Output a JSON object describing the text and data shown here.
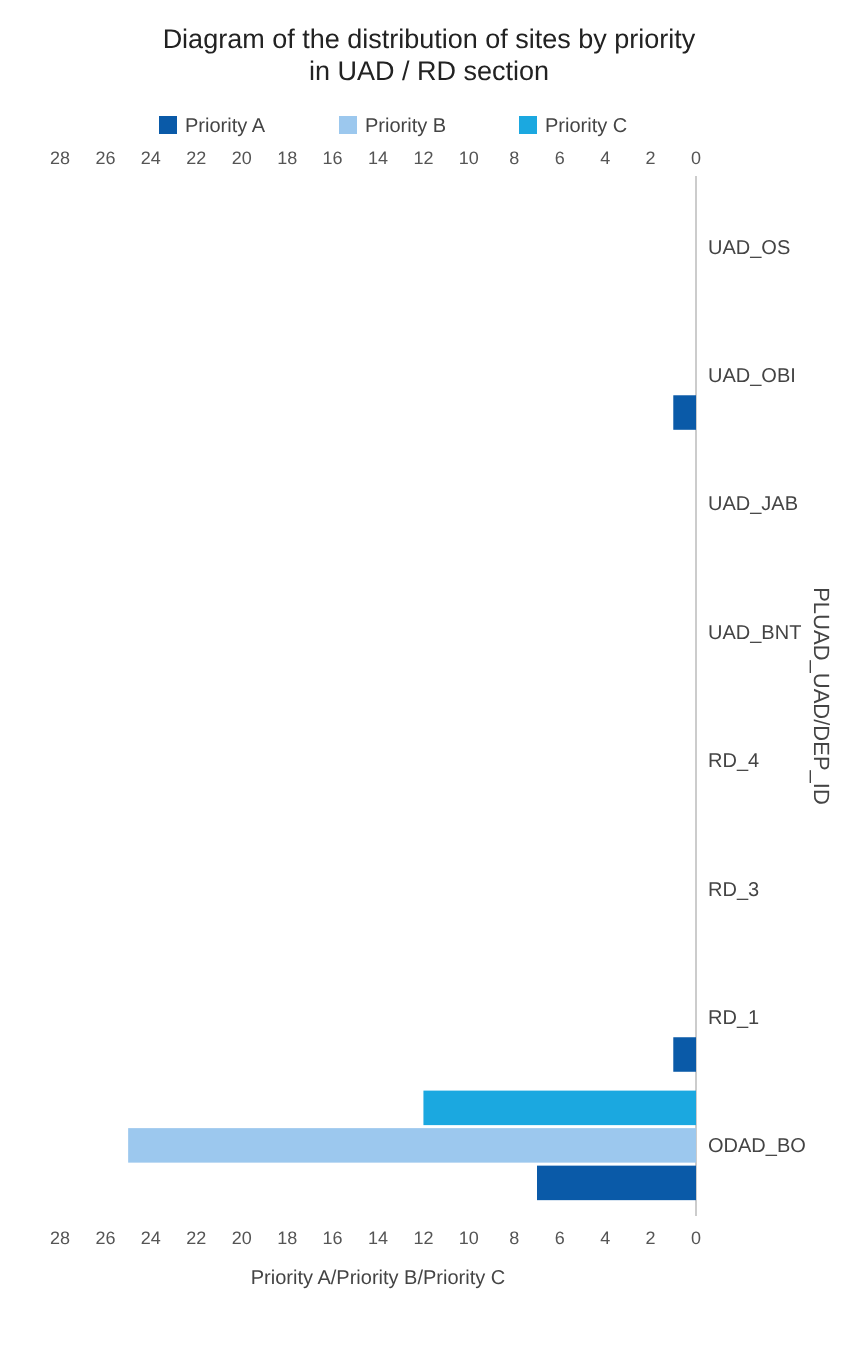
{
  "chart_data": {
    "type": "bar",
    "orientation": "horizontal",
    "title": "Diagram of the distribution of sites by priority in UAD / RD section",
    "xlabel": "Priority A/Priority B/Priority C",
    "ylabel": "PLUAD_UAD/DEP_ID",
    "categories": [
      "UAD_OS",
      "UAD_OBI",
      "UAD_JAB",
      "UAD_BNT",
      "RD_4",
      "RD_3",
      "RD_1",
      "ODAD_BO"
    ],
    "series": [
      {
        "name": "Priority A",
        "color": "#0a5aa8",
        "values": [
          0,
          1,
          0,
          0,
          0,
          0,
          1,
          7
        ]
      },
      {
        "name": "Priority B",
        "color": "#9cc8ee",
        "values": [
          0,
          0,
          0,
          0,
          0,
          0,
          0,
          25
        ]
      },
      {
        "name": "Priority C",
        "color": "#1ba8e0",
        "values": [
          0,
          0,
          0,
          0,
          0,
          0,
          0,
          12
        ]
      }
    ],
    "xlim": [
      28,
      0
    ],
    "xticks": [
      0,
      2,
      4,
      6,
      8,
      10,
      12,
      14,
      16,
      18,
      20,
      22,
      24,
      26,
      28
    ],
    "x2lim": [
      28,
      0
    ],
    "x2ticks": [
      0,
      2,
      4,
      6,
      8,
      10,
      12,
      14,
      16,
      18,
      20,
      22,
      24,
      26,
      28
    ],
    "legend": "top",
    "grid": false
  }
}
